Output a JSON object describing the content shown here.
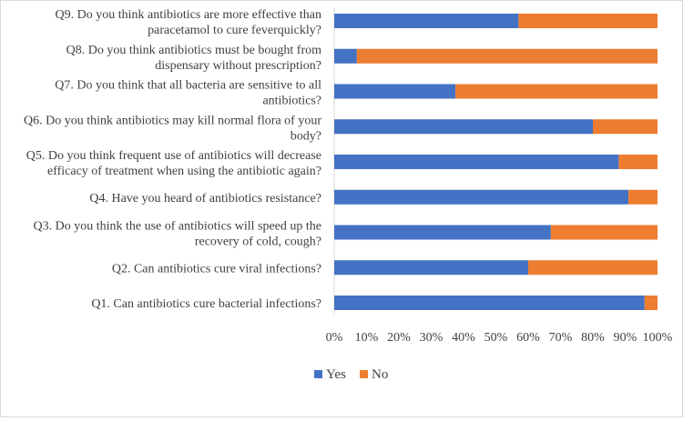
{
  "chart_data": {
    "type": "bar",
    "orientation": "horizontal",
    "stacked": "percent",
    "title": "",
    "xlabel": "",
    "ylabel": "",
    "xlim": [
      0,
      100
    ],
    "grid": false,
    "legend_position": "bottom",
    "categories": [
      [
        "Q9. Do you think antibiotics are more effective than",
        "paracetamol to cure feverquickly?"
      ],
      [
        "Q8. Do you think antibiotics must be bought from",
        "dispensary without prescription?"
      ],
      [
        "Q7. Do you think that all bacteria are sensitive to all",
        "antibiotics?"
      ],
      [
        "Q6. Do you think antibiotics may kill normal flora of your",
        "body?"
      ],
      [
        "Q5. Do you think frequent use of antibiotics will decrease",
        "efficacy of treatment when using the antibiotic again?"
      ],
      [
        "Q4. Have you heard of antibiotics resistance?"
      ],
      [
        "Q3. Do you think the use of antibiotics will speed up the",
        "recovery of cold, cough?"
      ],
      [
        "Q2. Can antibiotics cure viral infections?"
      ],
      [
        "Q1. Can antibiotics cure bacterial infections?"
      ]
    ],
    "series": [
      {
        "name": "Yes",
        "color": "#4472c4",
        "values": [
          57,
          7,
          37.5,
          80,
          88,
          91,
          67,
          60,
          96
        ]
      },
      {
        "name": "No",
        "color": "#ed7d31",
        "values": [
          43,
          93,
          62.5,
          20,
          12,
          9,
          33,
          40,
          4
        ]
      }
    ],
    "x_ticks": [
      "0%",
      "10%",
      "20%",
      "30%",
      "40%",
      "50%",
      "60%",
      "70%",
      "80%",
      "90%",
      "100%"
    ]
  }
}
